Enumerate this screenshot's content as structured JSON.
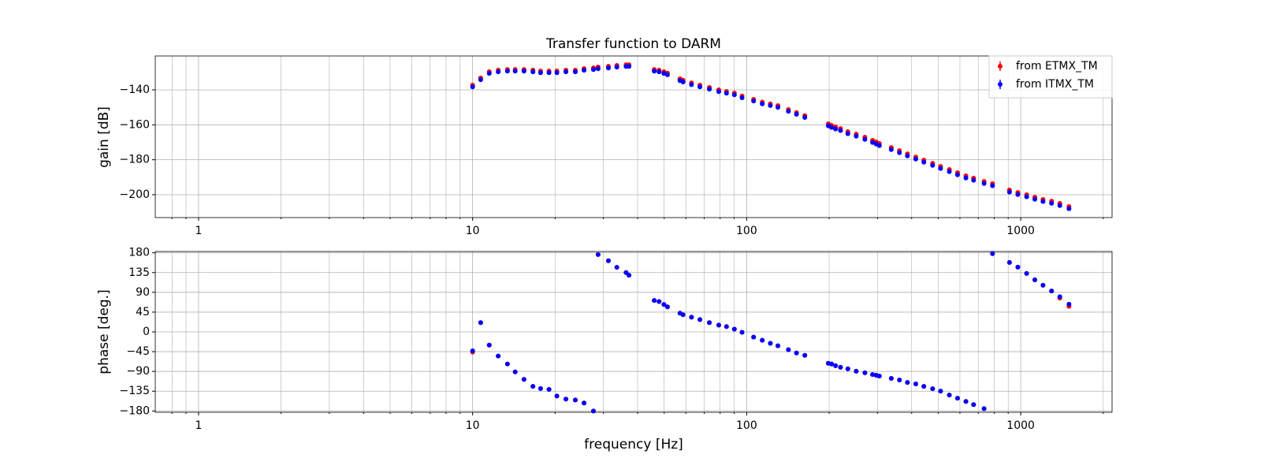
{
  "chart_data": [
    {
      "type": "scatter",
      "title": "Transfer function to DARM",
      "ylabel": "gain [dB]",
      "xscale": "log",
      "grid": true,
      "legend": "upper right",
      "x": [
        10.0,
        10.7,
        11.5,
        12.4,
        13.4,
        14.3,
        15.4,
        16.6,
        17.7,
        19.0,
        20.3,
        21.9,
        23.7,
        25.5,
        27.6,
        28.7,
        31.3,
        33.6,
        36.3,
        37.2,
        46,
        47.9,
        49.9,
        51.4,
        57.1,
        58.6,
        62.9,
        67.5,
        73.1,
        79.1,
        84.4,
        90.2,
        96.2,
        106,
        114,
        122,
        130,
        142,
        152,
        163,
        198.6,
        204,
        211,
        220,
        234,
        251,
        270,
        288,
        297,
        305,
        337,
        361,
        386,
        414,
        443,
        477,
        510,
        549,
        588,
        631,
        673,
        735,
        789,
        910,
        976,
        1051,
        1126,
        1206,
        1296,
        1389,
        1500
      ],
      "xlim": [
        0.695,
        2154
      ],
      "xticks": [
        1,
        10,
        100,
        1000
      ],
      "xminorticks": [
        0.8,
        0.9,
        2,
        3,
        4,
        5,
        6,
        7,
        8,
        9,
        20,
        30,
        40,
        50,
        60,
        70,
        80,
        90,
        200,
        300,
        400,
        500,
        600,
        700,
        800,
        900,
        2000
      ],
      "ylim": [
        -213.1,
        -120.6
      ],
      "yticks": [
        {
          "value": -200,
          "label": "−200"
        },
        {
          "value": -180,
          "label": "−180"
        },
        {
          "value": -160,
          "label": "−160"
        },
        {
          "value": -140,
          "label": "−140"
        }
      ],
      "series": [
        {
          "name": "from ETMX_TM",
          "color": "#ff0000",
          "values": [
            -137.3,
            -133.2,
            -129.6,
            -128.7,
            -128.3,
            -128.3,
            -128.3,
            -128.7,
            -129.2,
            -129.2,
            -129.2,
            -128.7,
            -128.7,
            -127.8,
            -127.4,
            -126.9,
            -126.5,
            -126,
            -125.6,
            -125.6,
            -128.3,
            -128.7,
            -129.6,
            -130.4,
            -133.7,
            -134.5,
            -136,
            -137.3,
            -138.6,
            -140,
            -140.9,
            -141.8,
            -143.5,
            -145.4,
            -147,
            -148,
            -149,
            -151.3,
            -153,
            -154.8,
            -159.4,
            -160.3,
            -161.2,
            -162.1,
            -163.9,
            -165.3,
            -167.1,
            -168.9,
            -169.8,
            -170.7,
            -173,
            -174.8,
            -176.6,
            -178.4,
            -180.2,
            -182,
            -183.8,
            -185.6,
            -187.4,
            -189.2,
            -190.5,
            -192.4,
            -193.7,
            -197.3,
            -198.7,
            -200,
            -201.4,
            -202.7,
            -203.7,
            -205,
            -206.8
          ]
        },
        {
          "name": "from ITMX_TM",
          "color": "#0000ff",
          "values": [
            -138.3,
            -134.2,
            -130.6,
            -129.7,
            -129.3,
            -129.3,
            -129.3,
            -129.7,
            -130.2,
            -130.2,
            -130.2,
            -129.7,
            -129.7,
            -128.8,
            -128.4,
            -127.9,
            -127.5,
            -127,
            -126.6,
            -126.6,
            -129.3,
            -129.7,
            -130.6,
            -131.4,
            -134.7,
            -135.5,
            -137,
            -138.3,
            -139.6,
            -141,
            -141.9,
            -142.8,
            -144.5,
            -146.4,
            -148,
            -149,
            -150,
            -152.3,
            -154,
            -155.8,
            -160.6,
            -161.5,
            -162.4,
            -163.3,
            -165.1,
            -166.5,
            -168.3,
            -170.1,
            -171,
            -171.9,
            -174.2,
            -176,
            -177.8,
            -179.6,
            -181.4,
            -183.2,
            -185,
            -186.8,
            -188.6,
            -190.4,
            -191.7,
            -193.6,
            -194.9,
            -198.5,
            -199.9,
            -201.2,
            -202.6,
            -203.9,
            -204.9,
            -206.2,
            -208.0
          ]
        }
      ]
    },
    {
      "type": "scatter",
      "xlabel": "frequency [Hz]",
      "ylabel": "phase [deg.]",
      "xscale": "log",
      "grid": true,
      "x": [
        10.0,
        10.7,
        11.5,
        12.4,
        13.4,
        14.3,
        15.4,
        16.6,
        17.7,
        19.0,
        20.3,
        21.9,
        23.7,
        25.5,
        27.6,
        28.7,
        31.3,
        33.6,
        36.3,
        37.2,
        46,
        47.9,
        49.9,
        51.4,
        57.1,
        58.6,
        62.9,
        67.5,
        73.1,
        79.1,
        84.4,
        90.2,
        96.2,
        106,
        114,
        122,
        130,
        142,
        152,
        163,
        198.6,
        204,
        211,
        220,
        234,
        251,
        270,
        288,
        297,
        305,
        337,
        361,
        386,
        414,
        443,
        477,
        510,
        549,
        588,
        631,
        673,
        735,
        789,
        910,
        976,
        1051,
        1126,
        1206,
        1296,
        1389,
        1500
      ],
      "xlim": [
        0.695,
        2154
      ],
      "xticks": [
        1,
        10,
        100,
        1000
      ],
      "xminorticks": [
        0.8,
        0.9,
        2,
        3,
        4,
        5,
        6,
        7,
        8,
        9,
        20,
        30,
        40,
        50,
        60,
        70,
        80,
        90,
        200,
        300,
        400,
        500,
        600,
        700,
        800,
        900,
        2000
      ],
      "ylim": [
        -183,
        183
      ],
      "yticks": [
        {
          "value": -180,
          "label": "−180"
        },
        {
          "value": -135,
          "label": "−135"
        },
        {
          "value": -90,
          "label": "−90"
        },
        {
          "value": -45,
          "label": "−45"
        },
        0,
        45,
        90,
        135,
        180
      ],
      "series": [
        {
          "name": "from ETMX_TM",
          "color": "#ff0000",
          "values": [
            -46,
            21,
            -30,
            -55,
            -73,
            -91,
            -108,
            -124,
            -129,
            -131,
            -146,
            -153,
            -155,
            -162,
            -180,
            176,
            162,
            147,
            135,
            129,
            71.5,
            69,
            62.4,
            57,
            42.5,
            39,
            33.5,
            28,
            21,
            15.4,
            12,
            6.3,
            -1,
            -11.8,
            -19,
            -26,
            -31.6,
            -40.7,
            -48,
            -53.4,
            -71.5,
            -73,
            -77,
            -80.5,
            -84,
            -89.5,
            -93,
            -97,
            -98.6,
            -100.4,
            -105.8,
            -109.4,
            -115,
            -118.5,
            -124,
            -129.3,
            -134.8,
            -143.8,
            -151,
            -158.3,
            -165.5,
            -174.6,
            178,
            158,
            147.4,
            133,
            118.5,
            106,
            93,
            77,
            58
          ]
        },
        {
          "name": "from ITMX_TM",
          "color": "#0000ff",
          "values": [
            -43,
            21,
            -30,
            -55,
            -73,
            -91,
            -108,
            -124,
            -129,
            -131,
            -146,
            -153,
            -155,
            -162,
            -180,
            176,
            162,
            147,
            135,
            129,
            71.5,
            69,
            62.4,
            57,
            42.5,
            39,
            33.5,
            28,
            21,
            15.4,
            12,
            6.3,
            -1,
            -11.8,
            -19,
            -26,
            -31.6,
            -40.7,
            -48,
            -53.4,
            -71.5,
            -73,
            -77,
            -80.5,
            -84,
            -89.5,
            -93,
            -97,
            -98.6,
            -100.4,
            -105.8,
            -109.4,
            -115,
            -118.5,
            -124,
            -129.3,
            -134.8,
            -143.8,
            -151,
            -158.3,
            -165.5,
            -174.6,
            178,
            158,
            147.4,
            133,
            118.5,
            106,
            93,
            80,
            63
          ]
        }
      ]
    }
  ]
}
